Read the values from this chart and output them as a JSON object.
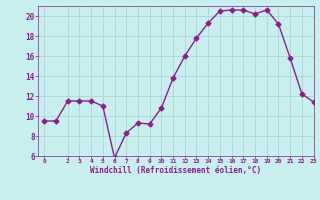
{
  "x": [
    0,
    1,
    2,
    3,
    4,
    5,
    6,
    7,
    8,
    9,
    10,
    11,
    12,
    13,
    14,
    15,
    16,
    17,
    18,
    19,
    20,
    21,
    22,
    23
  ],
  "y": [
    9.5,
    9.5,
    11.5,
    11.5,
    11.5,
    11.0,
    5.8,
    8.3,
    9.3,
    9.2,
    10.8,
    13.8,
    16.0,
    17.8,
    19.3,
    20.5,
    20.6,
    20.6,
    20.2,
    20.6,
    19.2,
    15.8,
    12.2,
    11.4
  ],
  "line_color": "#882288",
  "marker": "D",
  "markersize": 2.5,
  "linewidth": 1.0,
  "bg_color": "#c8eef0",
  "grid_color": "#aacccc",
  "xlabel": "Windchill (Refroidissement éolien,°C)",
  "tick_color": "#882288",
  "xlim": [
    -0.5,
    23
  ],
  "ylim": [
    6,
    21
  ],
  "yticks": [
    6,
    8,
    10,
    12,
    14,
    16,
    18,
    20
  ],
  "xticks": [
    0,
    2,
    3,
    4,
    5,
    6,
    7,
    8,
    9,
    10,
    11,
    12,
    13,
    14,
    15,
    16,
    17,
    18,
    19,
    20,
    21,
    22,
    23
  ],
  "figsize": [
    3.2,
    2.0
  ],
  "dpi": 100
}
